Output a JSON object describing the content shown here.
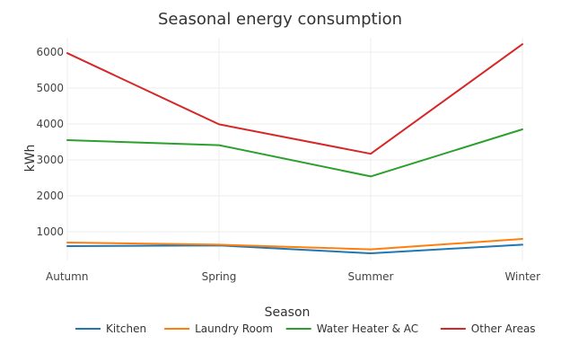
{
  "chart_data": {
    "type": "line",
    "title": "Seasonal energy consumption",
    "xlabel": "Season",
    "ylabel": "kWh",
    "categories": [
      "Autumn",
      "Spring",
      "Summer",
      "Winter"
    ],
    "ylim": [
      200,
      6400
    ],
    "yticks": [
      1000,
      2000,
      3000,
      4000,
      5000,
      6000
    ],
    "ytick_labels": [
      "1000",
      "2000",
      "3000",
      "4000",
      "5000",
      "6000"
    ],
    "grid": true,
    "legend_position": "bottom",
    "series": [
      {
        "name": "Kitchen",
        "color": "#1f77b4",
        "values": [
          600,
          620,
          400,
          640
        ]
      },
      {
        "name": "Laundry Room",
        "color": "#ff7f0e",
        "values": [
          700,
          640,
          510,
          800
        ]
      },
      {
        "name": "Water Heater & AC",
        "color": "#2ca02c",
        "values": [
          3550,
          3410,
          2540,
          3850
        ]
      },
      {
        "name": "Other Areas",
        "color": "#d62728",
        "values": [
          5970,
          3990,
          3170,
          6220
        ]
      }
    ]
  }
}
